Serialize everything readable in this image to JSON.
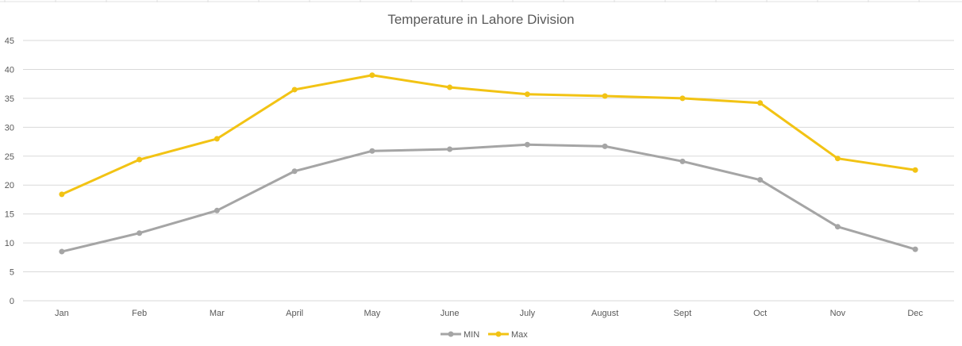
{
  "chart_data": {
    "type": "line",
    "title": "Temperature in Lahore Division",
    "xlabel": "",
    "ylabel": "",
    "categories": [
      "Jan",
      "Feb",
      "Mar",
      "April",
      "May",
      "June",
      "July",
      "August",
      "Sept",
      "Oct",
      "Nov",
      "Dec"
    ],
    "series": [
      {
        "name": "MIN",
        "color": "#a5a5a5",
        "values": [
          8.5,
          11.7,
          15.6,
          22.4,
          25.9,
          26.2,
          27.0,
          26.7,
          24.1,
          20.9,
          12.8,
          8.9
        ]
      },
      {
        "name": "Max",
        "color": "#f2c314",
        "values": [
          18.4,
          24.4,
          28.0,
          36.5,
          39.0,
          36.9,
          35.7,
          35.4,
          35.0,
          34.2,
          24.6,
          22.6
        ]
      }
    ],
    "ylim": [
      0,
      45
    ],
    "yticks": [
      "0",
      "5",
      "10",
      "15",
      "20",
      "25",
      "30",
      "35",
      "40",
      "45"
    ],
    "grid": true,
    "legend": "bottom-center"
  }
}
